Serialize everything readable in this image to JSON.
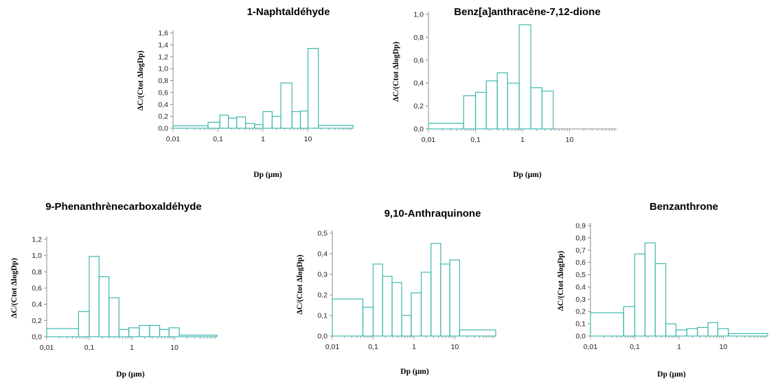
{
  "chart_data": [
    {
      "id": "naphtaldehyde",
      "type": "bar",
      "title": "1-Naphtaldéhyde",
      "xlabel": "Dp (µm)",
      "ylabel": "ΔC/(Ctot ΔlogDp)",
      "xscale": "log",
      "xlim": [
        0.01,
        100
      ],
      "ylim": [
        0,
        1.6
      ],
      "yticks": [
        "0,0",
        "0,2",
        "0,4",
        "0,6",
        "0,8",
        "1,0",
        "1,2",
        "1,4",
        "1,6"
      ],
      "xticks": [
        "0,01",
        "0,1",
        "1",
        "10"
      ],
      "bins": [
        {
          "lo": 0.01,
          "hi": 0.06,
          "value": 0.04
        },
        {
          "lo": 0.06,
          "hi": 0.11,
          "value": 0.1
        },
        {
          "lo": 0.11,
          "hi": 0.17,
          "value": 0.22
        },
        {
          "lo": 0.17,
          "hi": 0.26,
          "value": 0.17
        },
        {
          "lo": 0.26,
          "hi": 0.41,
          "value": 0.19
        },
        {
          "lo": 0.41,
          "hi": 0.65,
          "value": 0.08
        },
        {
          "lo": 0.65,
          "hi": 1.0,
          "value": 0.06
        },
        {
          "lo": 1.0,
          "hi": 1.6,
          "value": 0.28
        },
        {
          "lo": 1.6,
          "hi": 2.5,
          "value": 0.2
        },
        {
          "lo": 2.5,
          "hi": 4.4,
          "value": 0.76
        },
        {
          "lo": 4.4,
          "hi": 6.8,
          "value": 0.28
        },
        {
          "lo": 6.8,
          "hi": 10,
          "value": 0.29
        },
        {
          "lo": 10,
          "hi": 17,
          "value": 1.34
        },
        {
          "lo": 17,
          "hi": 100,
          "value": 0.05
        }
      ]
    },
    {
      "id": "benzanthracenedione",
      "type": "bar",
      "title": "Benz[a]anthracène-7,12-dione",
      "xlabel": "Dp (µm)",
      "ylabel": "ΔC/(Ctot ΔlogDp)",
      "xscale": "log",
      "xlim": [
        0.01,
        100
      ],
      "ylim": [
        0,
        1.0
      ],
      "yticks": [
        "0,0",
        "0,2",
        "0,4",
        "0,6",
        "0,8",
        "1,0"
      ],
      "xticks": [
        "0,01",
        "0,1",
        "1",
        "10"
      ],
      "bins": [
        {
          "lo": 0.01,
          "hi": 0.056,
          "value": 0.05
        },
        {
          "lo": 0.056,
          "hi": 0.1,
          "value": 0.29
        },
        {
          "lo": 0.1,
          "hi": 0.17,
          "value": 0.32
        },
        {
          "lo": 0.17,
          "hi": 0.29,
          "value": 0.42
        },
        {
          "lo": 0.29,
          "hi": 0.48,
          "value": 0.49
        },
        {
          "lo": 0.48,
          "hi": 0.85,
          "value": 0.4
        },
        {
          "lo": 0.85,
          "hi": 1.5,
          "value": 0.91
        },
        {
          "lo": 1.5,
          "hi": 2.6,
          "value": 0.36
        },
        {
          "lo": 2.6,
          "hi": 4.5,
          "value": 0.33
        },
        {
          "lo": 4.5,
          "hi": 100,
          "value": 0.0
        }
      ]
    },
    {
      "id": "phenanthrenecarboxaldehyde",
      "type": "bar",
      "title": "9-Phenanthrènecarboxaldéhyde",
      "xlabel": "Dp (µm)",
      "ylabel": "ΔC/(Ctot ΔlogDp)",
      "xscale": "log",
      "xlim": [
        0.01,
        100
      ],
      "ylim": [
        0,
        1.2
      ],
      "yticks": [
        "0,0",
        "0,2",
        "0,4",
        "0,6",
        "0,8",
        "1,0",
        "1,2"
      ],
      "xticks": [
        "0,01",
        "0,1",
        "1",
        "10"
      ],
      "bins": [
        {
          "lo": 0.01,
          "hi": 0.056,
          "value": 0.1
        },
        {
          "lo": 0.056,
          "hi": 0.1,
          "value": 0.31
        },
        {
          "lo": 0.1,
          "hi": 0.17,
          "value": 0.99
        },
        {
          "lo": 0.17,
          "hi": 0.29,
          "value": 0.74
        },
        {
          "lo": 0.29,
          "hi": 0.5,
          "value": 0.48
        },
        {
          "lo": 0.5,
          "hi": 0.85,
          "value": 0.09
        },
        {
          "lo": 0.85,
          "hi": 1.5,
          "value": 0.11
        },
        {
          "lo": 1.5,
          "hi": 2.6,
          "value": 0.14
        },
        {
          "lo": 2.6,
          "hi": 4.5,
          "value": 0.14
        },
        {
          "lo": 4.5,
          "hi": 7.5,
          "value": 0.09
        },
        {
          "lo": 7.5,
          "hi": 13,
          "value": 0.11
        },
        {
          "lo": 13,
          "hi": 100,
          "value": 0.02
        }
      ]
    },
    {
      "id": "anthraquinone",
      "type": "bar",
      "title": "9,10-Anthraquinone",
      "xlabel": "Dp (µm)",
      "ylabel": "ΔC/(Ctot ΔlogDp)",
      "xscale": "log",
      "xlim": [
        0.01,
        100
      ],
      "ylim": [
        0,
        0.5
      ],
      "yticks": [
        "0,0",
        "0,1",
        "0,2",
        "0,3",
        "0,4",
        "0,5"
      ],
      "xticks": [
        "0,01",
        "0,1",
        "1",
        "10"
      ],
      "bins": [
        {
          "lo": 0.01,
          "hi": 0.056,
          "value": 0.18
        },
        {
          "lo": 0.056,
          "hi": 0.1,
          "value": 0.14
        },
        {
          "lo": 0.1,
          "hi": 0.17,
          "value": 0.35
        },
        {
          "lo": 0.17,
          "hi": 0.29,
          "value": 0.29
        },
        {
          "lo": 0.29,
          "hi": 0.5,
          "value": 0.26
        },
        {
          "lo": 0.5,
          "hi": 0.85,
          "value": 0.1
        },
        {
          "lo": 0.85,
          "hi": 1.5,
          "value": 0.21
        },
        {
          "lo": 1.5,
          "hi": 2.6,
          "value": 0.31
        },
        {
          "lo": 2.6,
          "hi": 4.5,
          "value": 0.45
        },
        {
          "lo": 4.5,
          "hi": 7.5,
          "value": 0.35
        },
        {
          "lo": 7.5,
          "hi": 13,
          "value": 0.37
        },
        {
          "lo": 13,
          "hi": 100,
          "value": 0.03
        }
      ]
    },
    {
      "id": "benzanthrone",
      "type": "bar",
      "title": "Benzanthrone",
      "xlabel": "Dp (µm)",
      "ylabel": "ΔC/(Ctot ΔlogDp)",
      "xscale": "log",
      "xlim": [
        0.01,
        100
      ],
      "ylim": [
        0,
        0.9
      ],
      "yticks": [
        "0,0",
        "0,1",
        "0,2",
        "0,3",
        "0,4",
        "0,5",
        "0,6",
        "0,7",
        "0,8",
        "0,9"
      ],
      "xticks": [
        "0,01",
        "0,1",
        "1",
        "10"
      ],
      "bins": [
        {
          "lo": 0.01,
          "hi": 0.056,
          "value": 0.19
        },
        {
          "lo": 0.056,
          "hi": 0.1,
          "value": 0.24
        },
        {
          "lo": 0.1,
          "hi": 0.17,
          "value": 0.67
        },
        {
          "lo": 0.17,
          "hi": 0.29,
          "value": 0.76
        },
        {
          "lo": 0.29,
          "hi": 0.5,
          "value": 0.59
        },
        {
          "lo": 0.5,
          "hi": 0.85,
          "value": 0.1
        },
        {
          "lo": 0.85,
          "hi": 1.5,
          "value": 0.05
        },
        {
          "lo": 1.5,
          "hi": 2.6,
          "value": 0.06
        },
        {
          "lo": 2.6,
          "hi": 4.5,
          "value": 0.07
        },
        {
          "lo": 4.5,
          "hi": 7.5,
          "value": 0.11
        },
        {
          "lo": 7.5,
          "hi": 13,
          "value": 0.06
        },
        {
          "lo": 13,
          "hi": 100,
          "value": 0.02
        }
      ]
    }
  ],
  "colors": {
    "bar_stroke": "#3cb7ad",
    "axis": "#888888",
    "text": "#000000"
  }
}
